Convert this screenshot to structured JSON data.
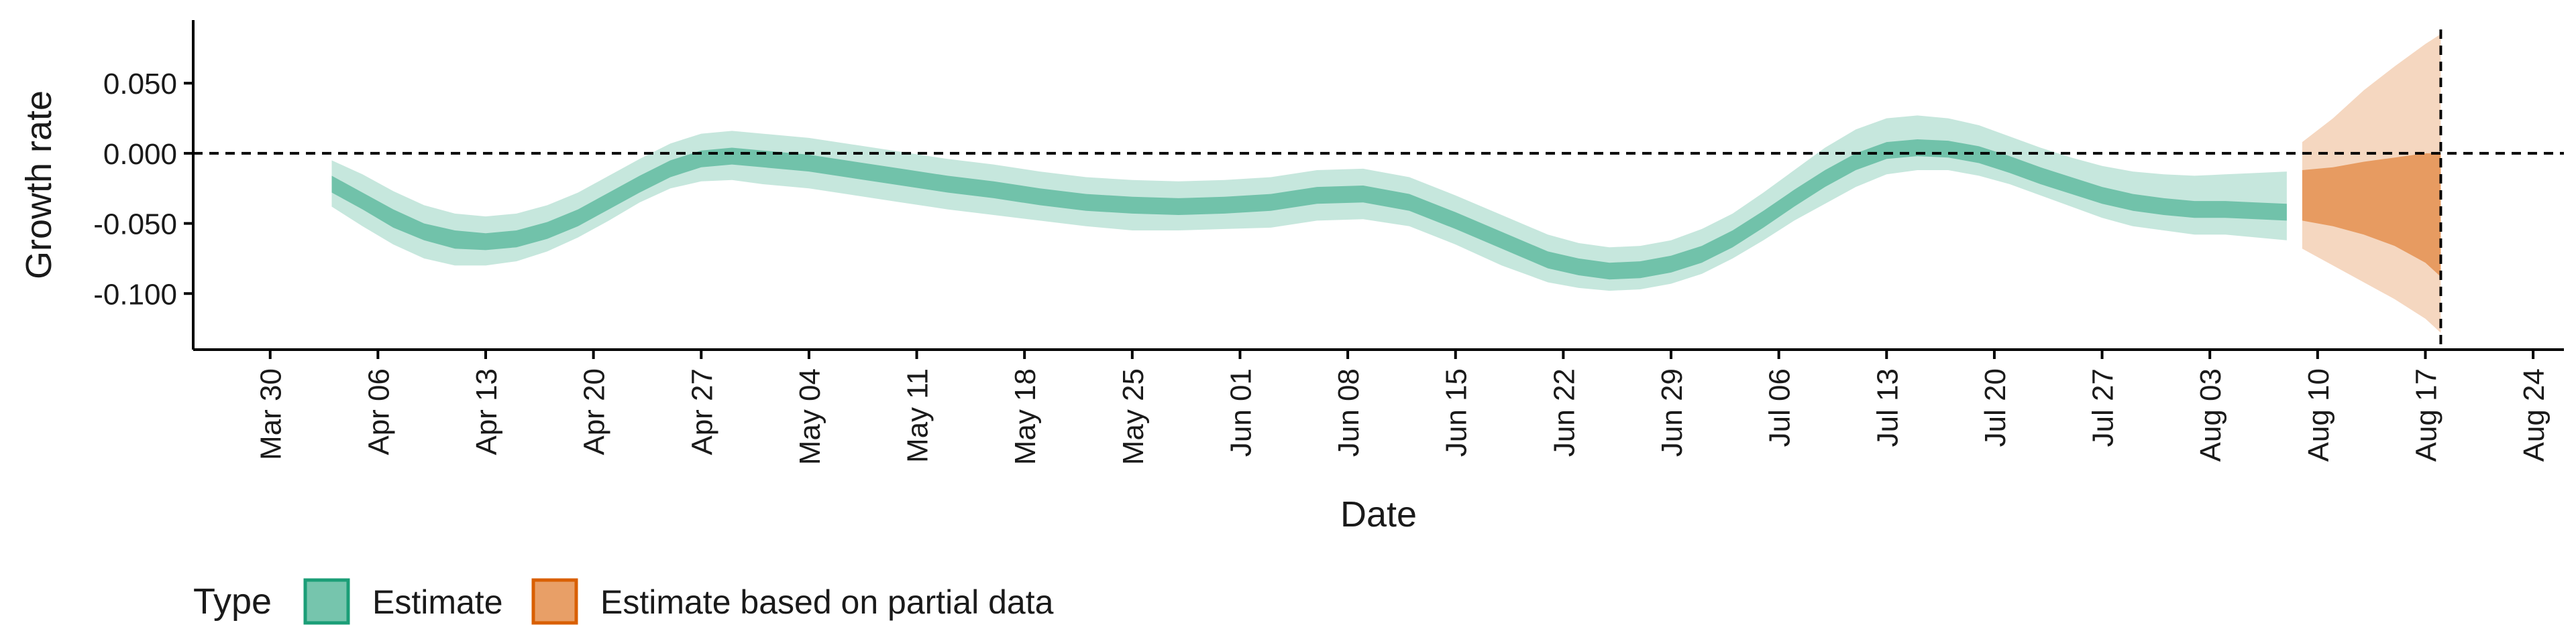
{
  "chart_data": {
    "type": "area",
    "xlabel": "Date",
    "ylabel": "Growth rate",
    "xlim": [
      "2020-03-25",
      "2020-08-26"
    ],
    "ylim": [
      -0.14,
      0.095
    ],
    "x_ticks": [
      "2020-03-30",
      "2020-04-06",
      "2020-04-13",
      "2020-04-20",
      "2020-04-27",
      "2020-05-04",
      "2020-05-11",
      "2020-05-18",
      "2020-05-25",
      "2020-06-01",
      "2020-06-08",
      "2020-06-15",
      "2020-06-22",
      "2020-06-29",
      "2020-07-06",
      "2020-07-13",
      "2020-07-20",
      "2020-07-27",
      "2020-08-03",
      "2020-08-10",
      "2020-08-17",
      "2020-08-24"
    ],
    "x_tick_labels": [
      "Mar 30",
      "Apr 06",
      "Apr 13",
      "Apr 20",
      "Apr 27",
      "May 04",
      "May 11",
      "May 18",
      "May 25",
      "Jun 01",
      "Jun 08",
      "Jun 15",
      "Jun 22",
      "Jun 29",
      "Jul 06",
      "Jul 13",
      "Jul 20",
      "Jul 27",
      "Aug 03",
      "Aug 10",
      "Aug 17",
      "Aug 24"
    ],
    "y_ticks": [
      0.05,
      0,
      -0.05,
      -0.1
    ],
    "y_tick_labels": [
      "0.050",
      "0.000",
      "-0.050",
      "-0.100"
    ],
    "hline": 0,
    "vline": "2020-08-18",
    "grid": false,
    "legend": {
      "title": "Type",
      "position": "bottom-left",
      "items": [
        {
          "label": "Estimate",
          "color": "#1b9e77"
        },
        {
          "label": "Estimate based on partial data",
          "color": "#d95f02"
        }
      ]
    },
    "series": [
      {
        "name": "Estimate",
        "color": "#1b9e77",
        "x": [
          "2020-04-03",
          "2020-04-05",
          "2020-04-07",
          "2020-04-09",
          "2020-04-11",
          "2020-04-13",
          "2020-04-15",
          "2020-04-17",
          "2020-04-19",
          "2020-04-21",
          "2020-04-23",
          "2020-04-25",
          "2020-04-27",
          "2020-04-29",
          "2020-05-01",
          "2020-05-04",
          "2020-05-07",
          "2020-05-10",
          "2020-05-13",
          "2020-05-16",
          "2020-05-19",
          "2020-05-22",
          "2020-05-25",
          "2020-05-28",
          "2020-05-31",
          "2020-06-03",
          "2020-06-06",
          "2020-06-09",
          "2020-06-12",
          "2020-06-15",
          "2020-06-18",
          "2020-06-21",
          "2020-06-23",
          "2020-06-25",
          "2020-06-27",
          "2020-06-29",
          "2020-07-01",
          "2020-07-03",
          "2020-07-05",
          "2020-07-07",
          "2020-07-09",
          "2020-07-11",
          "2020-07-13",
          "2020-07-15",
          "2020-07-17",
          "2020-07-19",
          "2020-07-21",
          "2020-07-23",
          "2020-07-25",
          "2020-07-27",
          "2020-07-29",
          "2020-07-31",
          "2020-08-02",
          "2020-08-04",
          "2020-08-06",
          "2020-08-08"
        ],
        "lower_90": [
          -0.038,
          -0.052,
          -0.065,
          -0.075,
          -0.08,
          -0.08,
          -0.077,
          -0.07,
          -0.06,
          -0.048,
          -0.035,
          -0.025,
          -0.02,
          -0.019,
          -0.022,
          -0.025,
          -0.03,
          -0.035,
          -0.04,
          -0.044,
          -0.048,
          -0.052,
          -0.055,
          -0.055,
          -0.054,
          -0.053,
          -0.048,
          -0.047,
          -0.052,
          -0.065,
          -0.08,
          -0.092,
          -0.096,
          -0.098,
          -0.097,
          -0.093,
          -0.086,
          -0.075,
          -0.062,
          -0.048,
          -0.036,
          -0.024,
          -0.015,
          -0.012,
          -0.012,
          -0.016,
          -0.022,
          -0.03,
          -0.038,
          -0.046,
          -0.052,
          -0.055,
          -0.058,
          -0.058,
          -0.06,
          -0.062
        ],
        "lower_50": [
          -0.028,
          -0.04,
          -0.053,
          -0.062,
          -0.068,
          -0.069,
          -0.067,
          -0.061,
          -0.052,
          -0.04,
          -0.028,
          -0.017,
          -0.01,
          -0.008,
          -0.01,
          -0.013,
          -0.018,
          -0.023,
          -0.028,
          -0.032,
          -0.037,
          -0.041,
          -0.043,
          -0.044,
          -0.043,
          -0.041,
          -0.036,
          -0.035,
          -0.041,
          -0.054,
          -0.068,
          -0.082,
          -0.087,
          -0.09,
          -0.089,
          -0.085,
          -0.078,
          -0.067,
          -0.053,
          -0.038,
          -0.024,
          -0.012,
          -0.004,
          -0.002,
          -0.003,
          -0.007,
          -0.014,
          -0.022,
          -0.029,
          -0.036,
          -0.041,
          -0.044,
          -0.046,
          -0.046,
          -0.047,
          -0.048
        ],
        "median": [
          -0.022,
          -0.034,
          -0.046,
          -0.056,
          -0.061,
          -0.063,
          -0.061,
          -0.055,
          -0.046,
          -0.034,
          -0.022,
          -0.011,
          -0.004,
          -0.002,
          -0.004,
          -0.007,
          -0.012,
          -0.017,
          -0.022,
          -0.026,
          -0.031,
          -0.035,
          -0.037,
          -0.038,
          -0.037,
          -0.035,
          -0.03,
          -0.029,
          -0.035,
          -0.048,
          -0.062,
          -0.076,
          -0.081,
          -0.084,
          -0.083,
          -0.079,
          -0.072,
          -0.061,
          -0.047,
          -0.032,
          -0.018,
          -0.006,
          0.002,
          0.004,
          0.003,
          -0.001,
          -0.008,
          -0.016,
          -0.023,
          -0.03,
          -0.035,
          -0.038,
          -0.04,
          -0.04,
          -0.041,
          -0.042
        ],
        "upper_50": [
          -0.016,
          -0.028,
          -0.04,
          -0.05,
          -0.055,
          -0.057,
          -0.055,
          -0.049,
          -0.04,
          -0.028,
          -0.016,
          -0.005,
          0.002,
          0.004,
          0.002,
          -0.001,
          -0.006,
          -0.011,
          -0.016,
          -0.02,
          -0.025,
          -0.029,
          -0.031,
          -0.032,
          -0.031,
          -0.029,
          -0.024,
          -0.023,
          -0.029,
          -0.042,
          -0.056,
          -0.07,
          -0.075,
          -0.078,
          -0.077,
          -0.073,
          -0.066,
          -0.055,
          -0.041,
          -0.026,
          -0.012,
          0.0,
          0.008,
          0.01,
          0.009,
          0.005,
          -0.002,
          -0.01,
          -0.017,
          -0.024,
          -0.029,
          -0.032,
          -0.034,
          -0.034,
          -0.035,
          -0.036
        ],
        "upper_90": [
          -0.005,
          -0.015,
          -0.027,
          -0.037,
          -0.043,
          -0.045,
          -0.043,
          -0.037,
          -0.028,
          -0.016,
          -0.004,
          0.007,
          0.014,
          0.016,
          0.014,
          0.011,
          0.006,
          0.001,
          -0.004,
          -0.008,
          -0.013,
          -0.017,
          -0.019,
          -0.02,
          -0.019,
          -0.017,
          -0.012,
          -0.011,
          -0.017,
          -0.03,
          -0.044,
          -0.058,
          -0.064,
          -0.067,
          -0.066,
          -0.062,
          -0.054,
          -0.043,
          -0.028,
          -0.012,
          0.004,
          0.017,
          0.025,
          0.027,
          0.025,
          0.02,
          0.012,
          0.004,
          -0.003,
          -0.009,
          -0.013,
          -0.015,
          -0.016,
          -0.015,
          -0.014,
          -0.013
        ]
      },
      {
        "name": "Estimate based on partial data",
        "color": "#d95f02",
        "x": [
          "2020-08-09",
          "2020-08-11",
          "2020-08-13",
          "2020-08-15",
          "2020-08-17",
          "2020-08-18"
        ],
        "lower_90": [
          -0.068,
          -0.08,
          -0.092,
          -0.104,
          -0.118,
          -0.128
        ],
        "lower_50": [
          -0.048,
          -0.052,
          -0.058,
          -0.066,
          -0.078,
          -0.088
        ],
        "median": [
          -0.03,
          -0.028,
          -0.024,
          -0.019,
          -0.014,
          -0.012
        ],
        "upper_50": [
          -0.012,
          -0.01,
          -0.006,
          -0.003,
          0.0,
          0.0
        ],
        "upper_90": [
          0.008,
          0.025,
          0.045,
          0.062,
          0.078,
          0.085
        ]
      }
    ]
  }
}
